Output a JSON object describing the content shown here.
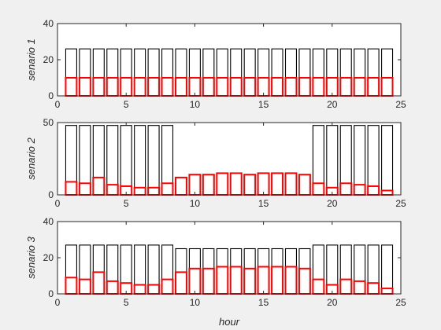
{
  "chart_data": {
    "type": "bar",
    "xlabel": "hour",
    "colors": {
      "outline": "#000000",
      "highlight": "#ff0000",
      "axes_bg": "#ffffff",
      "figure_bg": "#f0f0f0"
    },
    "panels": [
      {
        "ylabel": "senario 1",
        "xlim": [
          0,
          25
        ],
        "ylim": [
          0,
          40
        ],
        "xticks": [
          0,
          5,
          10,
          15,
          20,
          25
        ],
        "yticks": [
          0,
          20,
          40
        ],
        "x": [
          1,
          2,
          3,
          4,
          5,
          6,
          7,
          8,
          9,
          10,
          11,
          12,
          13,
          14,
          15,
          16,
          17,
          18,
          19,
          20,
          21,
          22,
          23,
          24
        ],
        "series": [
          {
            "values": [
              26,
              26,
              26,
              26,
              26,
              26,
              26,
              26,
              26,
              26,
              26,
              26,
              26,
              26,
              26,
              26,
              26,
              26,
              26,
              26,
              26,
              26,
              26,
              26
            ]
          },
          {
            "values": [
              10,
              10,
              10,
              10,
              10,
              10,
              10,
              10,
              10,
              10,
              10,
              10,
              10,
              10,
              10,
              10,
              10,
              10,
              10,
              10,
              10,
              10,
              10,
              10
            ]
          }
        ]
      },
      {
        "ylabel": "senario 2",
        "xlim": [
          0,
          25
        ],
        "ylim": [
          0,
          50
        ],
        "xticks": [
          0,
          5,
          10,
          15,
          20,
          25
        ],
        "yticks": [
          0,
          50
        ],
        "x": [
          1,
          2,
          3,
          4,
          5,
          6,
          7,
          8,
          9,
          10,
          11,
          12,
          13,
          14,
          15,
          16,
          17,
          18,
          19,
          20,
          21,
          22,
          23,
          24
        ],
        "series": [
          {
            "values": [
              48,
              48,
              48,
              48,
              48,
              48,
              48,
              48,
              0,
              0,
              0,
              0,
              0,
              0,
              0,
              0,
              0,
              0,
              48,
              48,
              48,
              48,
              48,
              48
            ]
          },
          {
            "values": [
              9,
              8,
              12,
              7,
              6,
              5,
              5,
              8,
              12,
              14,
              14,
              15,
              15,
              14,
              15,
              15,
              15,
              14,
              8,
              5,
              8,
              7,
              6,
              3
            ]
          }
        ]
      },
      {
        "ylabel": "senario 3",
        "xlim": [
          0,
          25
        ],
        "ylim": [
          0,
          40
        ],
        "xticks": [
          0,
          5,
          10,
          15,
          20,
          25
        ],
        "yticks": [
          0,
          20,
          40
        ],
        "x": [
          1,
          2,
          3,
          4,
          5,
          6,
          7,
          8,
          9,
          10,
          11,
          12,
          13,
          14,
          15,
          16,
          17,
          18,
          19,
          20,
          21,
          22,
          23,
          24
        ],
        "series": [
          {
            "values": [
              27,
              27,
              27,
              27,
              27,
              27,
              27,
              27,
              25,
              25,
              25,
              25,
              25,
              25,
              25,
              25,
              25,
              25,
              27,
              27,
              27,
              27,
              27,
              27
            ]
          },
          {
            "values": [
              9,
              8,
              12,
              7,
              6,
              5,
              5,
              8,
              12,
              14,
              14,
              15,
              15,
              14,
              15,
              15,
              15,
              14,
              8,
              5,
              8,
              7,
              6,
              3
            ]
          }
        ]
      }
    ]
  }
}
